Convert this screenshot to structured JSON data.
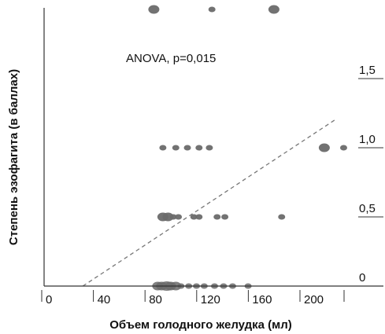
{
  "chart_data": {
    "type": "scatter",
    "title": "",
    "xlabel": "Объем голодного желудка (мл)",
    "ylabel": "Степень эзофагита (в баллах)",
    "annotation": "ANOVA, p=0,015",
    "x_ticks": [
      "0",
      "40",
      "80",
      "120",
      "160",
      "200"
    ],
    "x_tick_values": [
      0,
      40,
      80,
      120,
      160,
      200
    ],
    "y_ticks": [
      "0",
      "0,5",
      "1,0",
      "1,5"
    ],
    "y_tick_values": [
      0,
      0.5,
      1.0,
      1.5
    ],
    "xlim": [
      -5,
      240
    ],
    "point_color": "#6a6a6a",
    "trend_color": "#777777",
    "trend_line": [
      [
        30,
        0
      ],
      [
        225,
        1.2
      ]
    ],
    "points": [
      {
        "x": 88,
        "y": 0,
        "w": 2
      },
      {
        "x": 91,
        "y": 0,
        "w": 2
      },
      {
        "x": 95,
        "y": 0,
        "w": 3
      },
      {
        "x": 98,
        "y": 0,
        "w": 2
      },
      {
        "x": 102,
        "y": 0,
        "w": 2
      },
      {
        "x": 106,
        "y": 0,
        "w": 1
      },
      {
        "x": 112,
        "y": 0,
        "w": 1
      },
      {
        "x": 118,
        "y": 0,
        "w": 1
      },
      {
        "x": 124,
        "y": 0,
        "w": 1
      },
      {
        "x": 132,
        "y": 0,
        "w": 1
      },
      {
        "x": 139,
        "y": 0,
        "w": 1
      },
      {
        "x": 146,
        "y": 0,
        "w": 1
      },
      {
        "x": 158,
        "y": 0,
        "w": 1
      },
      {
        "x": 92,
        "y": 0.5,
        "w": 2
      },
      {
        "x": 96,
        "y": 0.5,
        "w": 2
      },
      {
        "x": 100,
        "y": 0.5,
        "w": 1
      },
      {
        "x": 104,
        "y": 0.5,
        "w": 1
      },
      {
        "x": 116,
        "y": 0.5,
        "w": 1
      },
      {
        "x": 120,
        "y": 0.5,
        "w": 1
      },
      {
        "x": 134,
        "y": 0.5,
        "w": 1
      },
      {
        "x": 140,
        "y": 0.5,
        "w": 1
      },
      {
        "x": 184,
        "y": 0.5,
        "w": 1
      },
      {
        "x": 92,
        "y": 1.0,
        "w": 1
      },
      {
        "x": 102,
        "y": 1.0,
        "w": 1
      },
      {
        "x": 111,
        "y": 1.0,
        "w": 1
      },
      {
        "x": 120,
        "y": 1.0,
        "w": 1
      },
      {
        "x": 128,
        "y": 1.0,
        "w": 1
      },
      {
        "x": 217,
        "y": 1.0,
        "w": 2
      },
      {
        "x": 232,
        "y": 1.0,
        "w": 1
      },
      {
        "x": 85,
        "y": 2.0,
        "w": 2
      },
      {
        "x": 130,
        "y": 2.0,
        "w": 1
      },
      {
        "x": 178,
        "y": 2.0,
        "w": 2
      }
    ]
  }
}
